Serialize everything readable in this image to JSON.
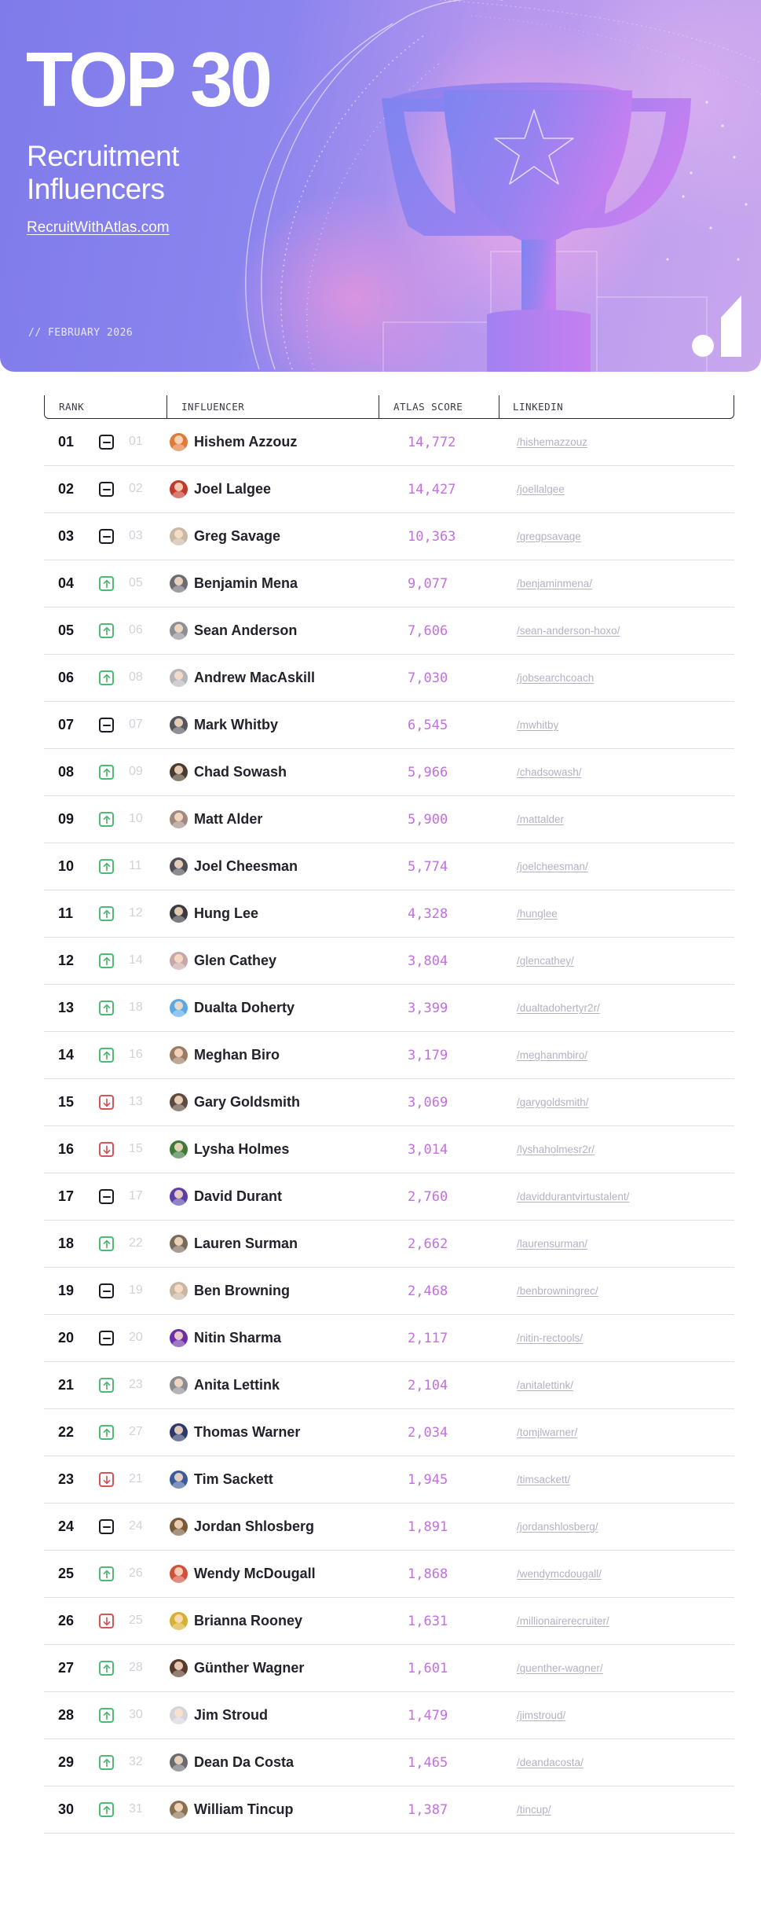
{
  "header": {
    "title": "TOP 30",
    "subtitle": "Recruitment Influencers",
    "link": "RecruitWithAtlas.com",
    "date": "// FEBRUARY 2026",
    "colors": {
      "accent_score": "#c36fe0",
      "trend_up": "#51b877",
      "trend_down": "#d2555a",
      "trend_same": "#1c1c24"
    },
    "icons": {
      "hero": "trophy-star-icon",
      "logo": "atlas-logo-icon"
    }
  },
  "table": {
    "columns": {
      "rank": "RANK",
      "influencer": "INFLUENCER",
      "score": "ATLAS SCORE",
      "linkedin": "LINKEDIN"
    },
    "rows": [
      {
        "rank": "01",
        "trend": "same",
        "prev": "01",
        "name": "Hishem Azzouz",
        "score": "14,772",
        "linkedin": "/hishemazzouz",
        "avatar_color": "#e07a3a"
      },
      {
        "rank": "02",
        "trend": "same",
        "prev": "02",
        "name": "Joel Lalgee",
        "score": "14,427",
        "linkedin": "/joellalgee",
        "avatar_color": "#c0392b"
      },
      {
        "rank": "03",
        "trend": "same",
        "prev": "03",
        "name": "Greg Savage",
        "score": "10,363",
        "linkedin": "/gregpsavage",
        "avatar_color": "#c9b8a6"
      },
      {
        "rank": "04",
        "trend": "up",
        "prev": "05",
        "name": "Benjamin Mena",
        "score": "9,077",
        "linkedin": "/benjaminmena/",
        "avatar_color": "#6b6b73"
      },
      {
        "rank": "05",
        "trend": "up",
        "prev": "06",
        "name": "Sean Anderson",
        "score": "7,606",
        "linkedin": "/sean-anderson-hoxo/",
        "avatar_color": "#8e8e96"
      },
      {
        "rank": "06",
        "trend": "up",
        "prev": "08",
        "name": "Andrew MacAskill",
        "score": "7,030",
        "linkedin": "/jobsearchcoach",
        "avatar_color": "#b5b5bd"
      },
      {
        "rank": "07",
        "trend": "same",
        "prev": "07",
        "name": "Mark Whitby",
        "score": "6,545",
        "linkedin": "/mwhitby",
        "avatar_color": "#55555e"
      },
      {
        "rank": "08",
        "trend": "up",
        "prev": "09",
        "name": "Chad Sowash",
        "score": "5,966",
        "linkedin": "/chadsowash/",
        "avatar_color": "#4a3b2e"
      },
      {
        "rank": "09",
        "trend": "up",
        "prev": "10",
        "name": "Matt Alder",
        "score": "5,900",
        "linkedin": "/mattalder",
        "avatar_color": "#a08a80"
      },
      {
        "rank": "10",
        "trend": "up",
        "prev": "11",
        "name": "Joel Cheesman",
        "score": "5,774",
        "linkedin": "/joelcheesman/",
        "avatar_color": "#4f4f5a"
      },
      {
        "rank": "11",
        "trend": "up",
        "prev": "12",
        "name": "Hung Lee",
        "score": "4,328",
        "linkedin": "/hunglee",
        "avatar_color": "#3a3a40"
      },
      {
        "rank": "12",
        "trend": "up",
        "prev": "14",
        "name": "Glen Cathey",
        "score": "3,804",
        "linkedin": "/glencathey/",
        "avatar_color": "#c7a8a8"
      },
      {
        "rank": "13",
        "trend": "up",
        "prev": "18",
        "name": "Dualta Doherty",
        "score": "3,399",
        "linkedin": "/dualtadohertyr2r/",
        "avatar_color": "#5aa9e6"
      },
      {
        "rank": "14",
        "trend": "up",
        "prev": "16",
        "name": "Meghan Biro",
        "score": "3,179",
        "linkedin": "/meghanmbiro/",
        "avatar_color": "#9c7b62"
      },
      {
        "rank": "15",
        "trend": "down",
        "prev": "13",
        "name": "Gary Goldsmith",
        "score": "3,069",
        "linkedin": "/garygoldsmith/",
        "avatar_color": "#5e4a40"
      },
      {
        "rank": "16",
        "trend": "down",
        "prev": "15",
        "name": "Lysha Holmes",
        "score": "3,014",
        "linkedin": "/lyshaholmesr2r/",
        "avatar_color": "#3d7a3a"
      },
      {
        "rank": "17",
        "trend": "same",
        "prev": "17",
        "name": "David Durant",
        "score": "2,760",
        "linkedin": "/daviddurantvirtustalent/",
        "avatar_color": "#5b3fa8"
      },
      {
        "rank": "18",
        "trend": "up",
        "prev": "22",
        "name": "Lauren Surman",
        "score": "2,662",
        "linkedin": "/laurensurman/",
        "avatar_color": "#7a6a5a"
      },
      {
        "rank": "19",
        "trend": "same",
        "prev": "19",
        "name": "Ben Browning",
        "score": "2,468",
        "linkedin": "/benbrowningrec/",
        "avatar_color": "#c8b6a4"
      },
      {
        "rank": "20",
        "trend": "same",
        "prev": "20",
        "name": "Nitin Sharma",
        "score": "2,117",
        "linkedin": "/nitin-rectools/",
        "avatar_color": "#6a2fa8"
      },
      {
        "rank": "21",
        "trend": "up",
        "prev": "23",
        "name": "Anita Lettink",
        "score": "2,104",
        "linkedin": "/anitalettink/",
        "avatar_color": "#8c8c94"
      },
      {
        "rank": "22",
        "trend": "up",
        "prev": "27",
        "name": "Thomas Warner",
        "score": "2,034",
        "linkedin": "/tomjlwarner/",
        "avatar_color": "#2c3a6a"
      },
      {
        "rank": "23",
        "trend": "down",
        "prev": "21",
        "name": "Tim Sackett",
        "score": "1,945",
        "linkedin": "/timsackett/",
        "avatar_color": "#3a5a9a"
      },
      {
        "rank": "24",
        "trend": "same",
        "prev": "24",
        "name": "Jordan Shlosberg",
        "score": "1,891",
        "linkedin": "/jordanshlosberg/",
        "avatar_color": "#7a5a3a"
      },
      {
        "rank": "25",
        "trend": "up",
        "prev": "26",
        "name": "Wendy McDougall",
        "score": "1,868",
        "linkedin": "/wendymcdougall/",
        "avatar_color": "#d0503a"
      },
      {
        "rank": "26",
        "trend": "down",
        "prev": "25",
        "name": "Brianna Rooney",
        "score": "1,631",
        "linkedin": "/millionairerecruiter/",
        "avatar_color": "#d8b030"
      },
      {
        "rank": "27",
        "trend": "up",
        "prev": "28",
        "name": "Günther Wagner",
        "score": "1,601",
        "linkedin": "/guenther-wagner/",
        "avatar_color": "#5a3a2a"
      },
      {
        "rank": "28",
        "trend": "up",
        "prev": "30",
        "name": "Jim Stroud",
        "score": "1,479",
        "linkedin": "/jimstroud/",
        "avatar_color": "#d4d4dc"
      },
      {
        "rank": "29",
        "trend": "up",
        "prev": "32",
        "name": "Dean Da Costa",
        "score": "1,465",
        "linkedin": "/deandacosta/",
        "avatar_color": "#6a6a72"
      },
      {
        "rank": "30",
        "trend": "up",
        "prev": "31",
        "name": "William Tincup",
        "score": "1,387",
        "linkedin": "/tincup/",
        "avatar_color": "#8a7050"
      }
    ]
  }
}
